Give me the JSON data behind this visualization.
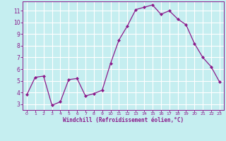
{
  "x": [
    0,
    1,
    2,
    3,
    4,
    5,
    6,
    7,
    8,
    9,
    10,
    11,
    12,
    13,
    14,
    15,
    16,
    17,
    18,
    19,
    20,
    21,
    22,
    23
  ],
  "y": [
    3.8,
    5.3,
    5.4,
    2.9,
    3.2,
    5.1,
    5.2,
    3.7,
    3.9,
    4.2,
    6.5,
    8.5,
    9.7,
    11.1,
    11.3,
    11.5,
    10.7,
    11.0,
    10.3,
    9.8,
    8.2,
    7.0,
    6.2,
    4.9
  ],
  "line_color": "#8b1a8b",
  "marker": "D",
  "marker_size": 2.0,
  "bg_color": "#c5eef0",
  "grid_color": "#ffffff",
  "xlabel": "Windchill (Refroidissement éolien,°C)",
  "xlabel_color": "#8b1a8b",
  "tick_color": "#8b1a8b",
  "ylim": [
    2.5,
    11.8
  ],
  "xlim": [
    -0.5,
    23.5
  ],
  "yticks": [
    3,
    4,
    5,
    6,
    7,
    8,
    9,
    10,
    11
  ],
  "xticks": [
    0,
    1,
    2,
    3,
    4,
    5,
    6,
    7,
    8,
    9,
    10,
    11,
    12,
    13,
    14,
    15,
    16,
    17,
    18,
    19,
    20,
    21,
    22,
    23
  ],
  "figsize": [
    3.2,
    2.0
  ],
  "dpi": 100
}
